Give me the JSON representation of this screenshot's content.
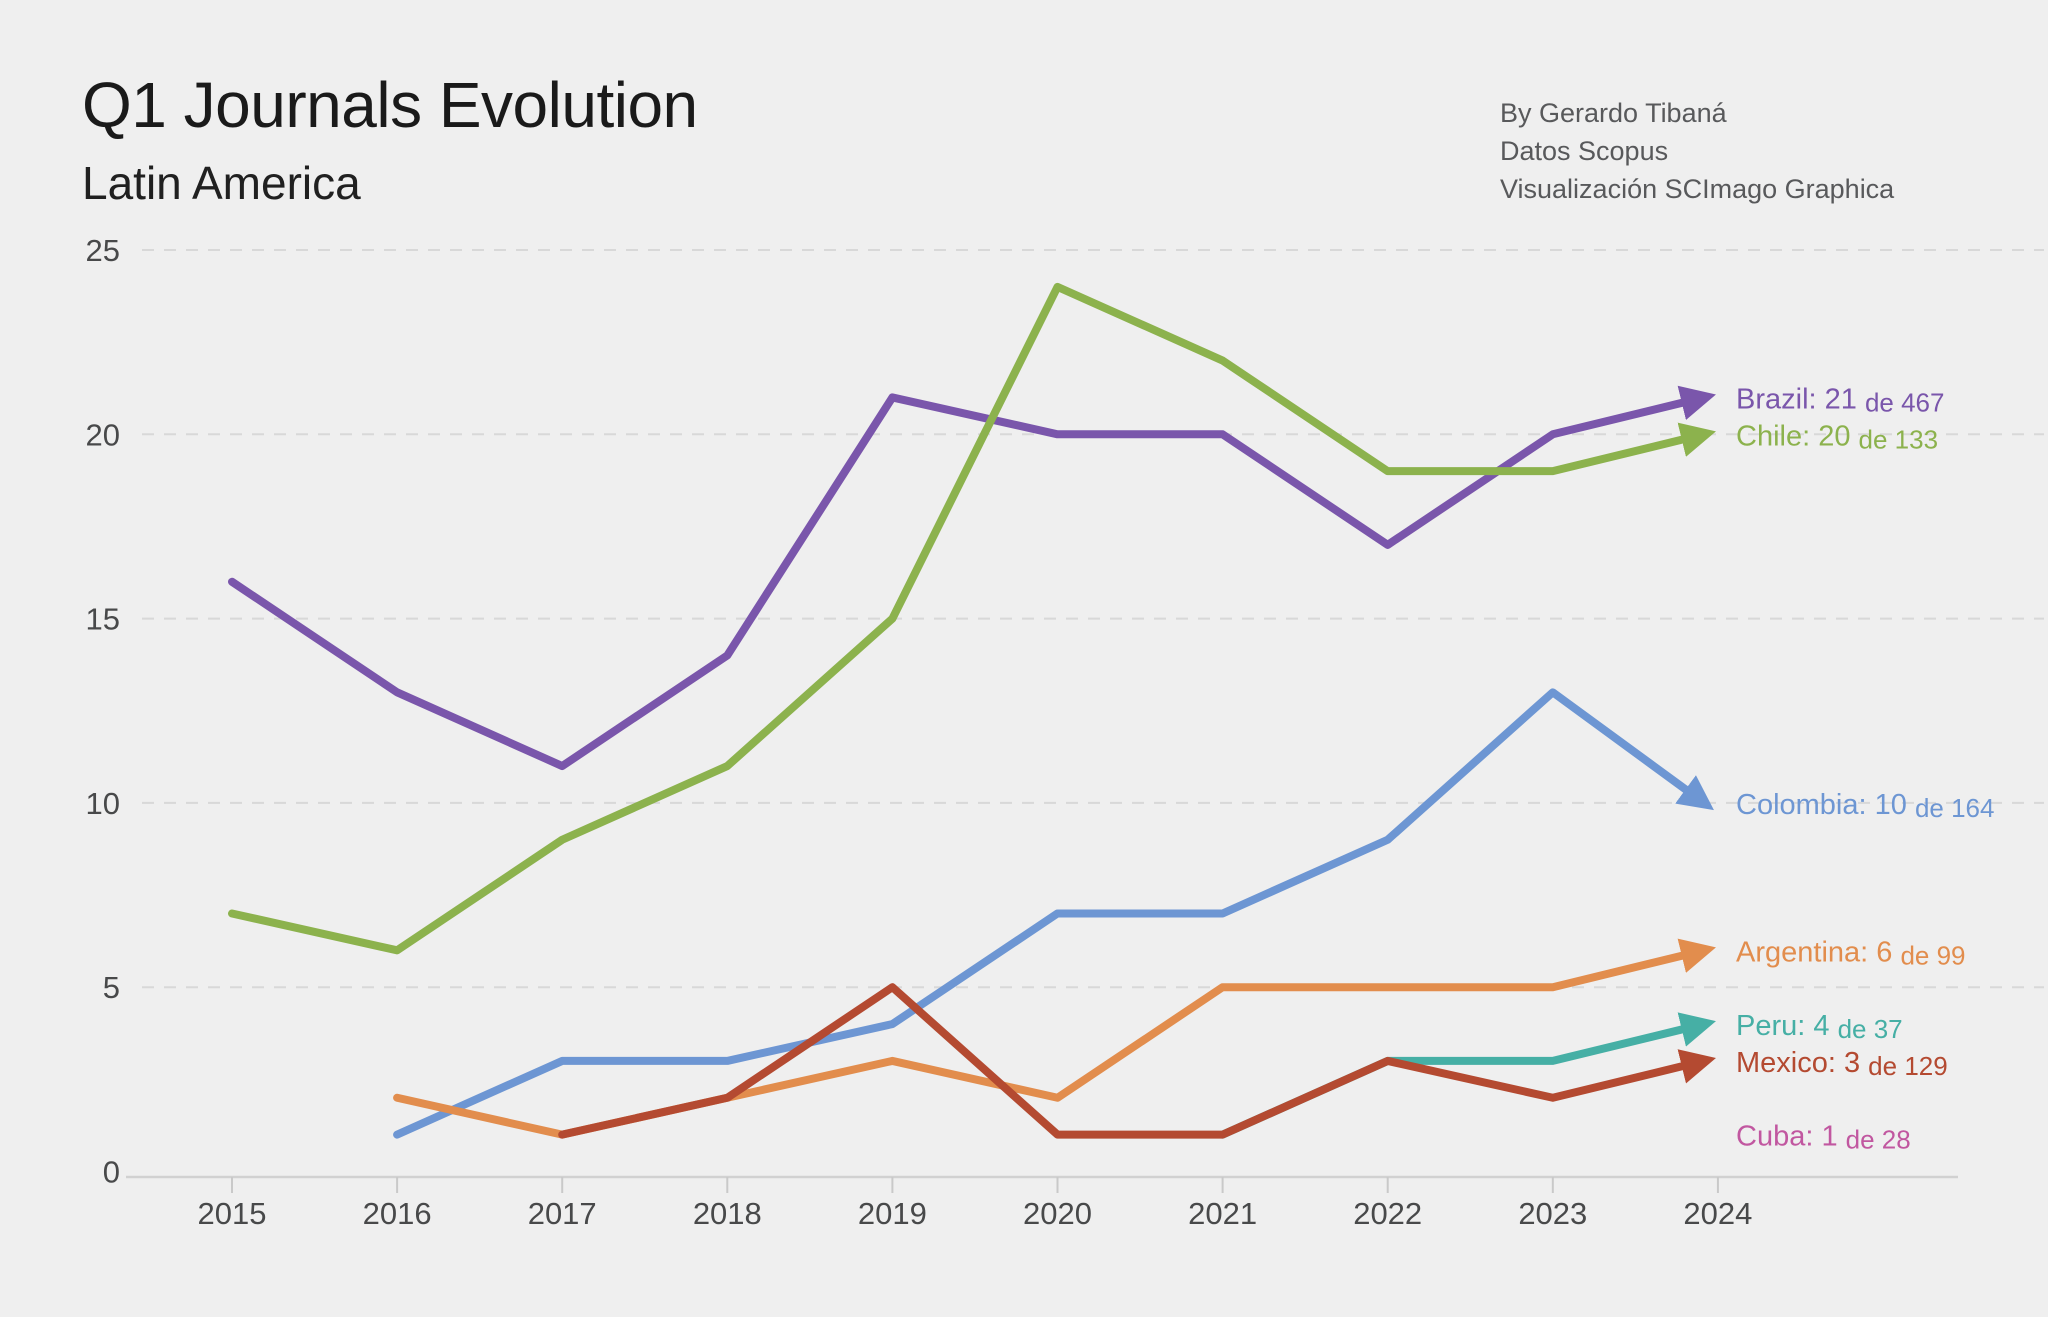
{
  "title": "Q1 Journals Evolution",
  "subtitle": "Latin America",
  "credits": {
    "author": "By Gerardo Tibaná",
    "source": "Datos Scopus",
    "tool": "Visualización SCImago Graphica"
  },
  "colors": {
    "background": "#efefef",
    "gridline": "#d8d8d8",
    "axis_line": "#d1d1d1",
    "tick": "#c9c9c9",
    "axis_text": "#48494a",
    "title_text": "#1a1a1a",
    "credits_text": "#58595b"
  },
  "chart_data": {
    "type": "line",
    "title": "Q1 Journals Evolution",
    "subtitle": "Latin America",
    "x": [
      2015,
      2016,
      2017,
      2018,
      2019,
      2020,
      2021,
      2022,
      2023,
      2024
    ],
    "xlabel": "",
    "ylabel": "",
    "ylim": [
      0,
      25
    ],
    "yticks": [
      0,
      5,
      10,
      15,
      20,
      25
    ],
    "grid": "horizontal-dashed",
    "legend_position": "right-end-labels",
    "series": [
      {
        "name": "Brazil",
        "color": "#7a56ab",
        "values": [
          16,
          13,
          11,
          14,
          21,
          20,
          20,
          17,
          20,
          21
        ],
        "end_label": "Brazil: 21",
        "end_label_sub": "de 467",
        "end_value": 21,
        "total": 467,
        "arrow": true,
        "line_visible": true
      },
      {
        "name": "Chile",
        "color": "#8cb24d",
        "values": [
          7,
          6,
          9,
          11,
          15,
          24,
          22,
          19,
          19,
          20
        ],
        "end_label": "Chile: 20",
        "end_label_sub": "de 133",
        "end_value": 20,
        "total": 133,
        "arrow": true,
        "line_visible": true
      },
      {
        "name": "Colombia",
        "color": "#6d96d3",
        "values": [
          null,
          1,
          3,
          3,
          4,
          7,
          7,
          9,
          13,
          10
        ],
        "end_label": "Colombia: 10",
        "end_label_sub": "de 164",
        "end_value": 10,
        "total": 164,
        "arrow": true,
        "line_visible": true
      },
      {
        "name": "Argentina",
        "color": "#e28d4d",
        "values": [
          null,
          2,
          1,
          2,
          3,
          2,
          5,
          5,
          5,
          6
        ],
        "end_label": "Argentina: 6",
        "end_label_sub": "de 99",
        "end_value": 6,
        "total": 99,
        "arrow": true,
        "line_visible": true
      },
      {
        "name": "Peru",
        "color": "#46afa5",
        "values": [
          null,
          null,
          null,
          null,
          null,
          null,
          1,
          3,
          3,
          4
        ],
        "end_label": "Peru: 4",
        "end_label_sub": "de 37",
        "end_value": 4,
        "total": 37,
        "arrow": true,
        "line_visible": true
      },
      {
        "name": "Mexico",
        "color": "#b44a31",
        "values": [
          null,
          null,
          1,
          2,
          5,
          1,
          1,
          3,
          2,
          3
        ],
        "end_label": "Mexico: 3",
        "end_label_sub": "de 129",
        "end_value": 3,
        "total": 129,
        "arrow": true,
        "line_visible": true
      },
      {
        "name": "Cuba",
        "color": "#c157a0",
        "values": [
          null,
          null,
          null,
          null,
          null,
          null,
          null,
          null,
          null,
          1
        ],
        "end_label": "Cuba: 1",
        "end_label_sub": "de 28",
        "end_value": 1,
        "total": 28,
        "arrow": false,
        "line_visible": false
      }
    ]
  }
}
